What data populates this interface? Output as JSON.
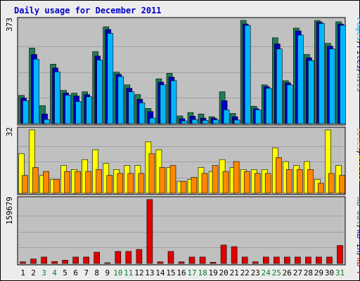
{
  "title": "Daily usage for December 2011",
  "colors": {
    "background": "#ececec",
    "panel": "#c0c0c0",
    "frame": "#000000",
    "title_text": "#0000c8",
    "hits": "#1e7d55",
    "files": "#0000c0",
    "pages": "#00b7ff",
    "visits": "#ffff00",
    "sites": "#ff8800",
    "kbytes": "#e00000",
    "weekend_label": "#0a7d28",
    "weekday_label": "#000000"
  },
  "chart_data": {
    "type": "bar",
    "title": "Daily usage for December 2011",
    "categories": [
      "1",
      "2",
      "3",
      "4",
      "5",
      "6",
      "7",
      "8",
      "9",
      "10",
      "11",
      "12",
      "13",
      "14",
      "15",
      "16",
      "17",
      "18",
      "19",
      "20",
      "21",
      "22",
      "23",
      "24",
      "25",
      "26",
      "27",
      "28",
      "29",
      "30",
      "31"
    ],
    "weekend_days": [
      "3",
      "4",
      "10",
      "11",
      "17",
      "18",
      "24",
      "25",
      "31"
    ],
    "panels": [
      {
        "id": "requests",
        "max_label": "373",
        "ylim": [
          0,
          373
        ],
        "legend": [
          {
            "text": "Hits",
            "color_key": "hits"
          },
          {
            "text": "/",
            "color_key": "frame"
          },
          {
            "text": "Files",
            "color_key": "files"
          },
          {
            "text": "/",
            "color_key": "frame"
          },
          {
            "text": "Pages",
            "color_key": "pages"
          }
        ],
        "series": [
          {
            "name": "Hits",
            "values": [
              102,
              273,
              65,
              215,
              120,
              110,
              115,
              260,
              350,
              186,
              140,
              105,
              55,
              162,
              182,
              28,
              40,
              35,
              25,
              115,
              37,
              373,
              63,
              140,
              310,
              155,
              345,
              250,
              373,
              290,
              368
            ]
          },
          {
            "name": "Files",
            "values": [
              93,
              250,
              35,
              201,
              111,
              100,
              105,
              244,
              340,
              178,
              128,
              88,
              44,
              150,
              168,
              18,
              27,
              20,
              20,
              83,
              25,
              360,
              54,
              134,
              288,
              148,
              335,
              238,
              367,
              280,
              360
            ]
          },
          {
            "name": "Pages",
            "values": [
              83,
              233,
              15,
              187,
              103,
              80,
              97,
              230,
              326,
              170,
              115,
              75,
              20,
              140,
              155,
              10,
              15,
              12,
              14,
              50,
              13,
              355,
              50,
              128,
              270,
              140,
              320,
              228,
              362,
              270,
              355
            ]
          }
        ]
      },
      {
        "id": "visitors",
        "max_label": "32",
        "ylim": [
          0,
          32
        ],
        "legend": [
          {
            "text": "Visits",
            "color_key": "visits"
          },
          {
            "text": "/",
            "color_key": "frame"
          },
          {
            "text": "Sites",
            "color_key": "sites"
          }
        ],
        "series": [
          {
            "name": "Visits",
            "values": [
              20,
              32,
              9,
              7,
              14,
              12,
              17,
              22,
              15,
              12,
              14,
              14,
              26,
              22,
              13,
              6,
              7,
              13,
              11,
              17,
              13,
              12,
              12,
              12,
              23,
              16,
              14,
              16,
              7,
              32,
              14
            ]
          },
          {
            "name": "Sites",
            "values": [
              9,
              13,
              11,
              7,
              11,
              11,
              11,
              12,
              9,
              10,
              10,
              10,
              20,
              13,
              14,
              6,
              8,
              10,
              14,
              11,
              16,
              11,
              10,
              10,
              18,
              12,
              12,
              12,
              5,
              10,
              9
            ]
          }
        ]
      },
      {
        "id": "kbytes",
        "max_label": "159679",
        "ylim": [
          0,
          159679
        ],
        "legend": [
          {
            "text": "kB F",
            "color_key": "kbytes"
          },
          {
            "text": "/",
            "color_key": "frame"
          },
          {
            "text": "kB In",
            "color_key": "files"
          },
          {
            "text": "/",
            "color_key": "frame"
          },
          {
            "text": "kB Out",
            "color_key": "hits"
          }
        ],
        "series": [
          {
            "name": "kB F",
            "values": [
              4000,
              11000,
              16000,
              5000,
              8000,
              16000,
              16000,
              28000,
              0,
              30000,
              30000,
              35000,
              159679,
              4000,
              30000,
              4000,
              16000,
              16000,
              3000,
              46000,
              42000,
              16000,
              4000,
              16000,
              16000,
              16000,
              16000,
              16000,
              16000,
              16000,
              45000
            ]
          }
        ]
      }
    ]
  }
}
